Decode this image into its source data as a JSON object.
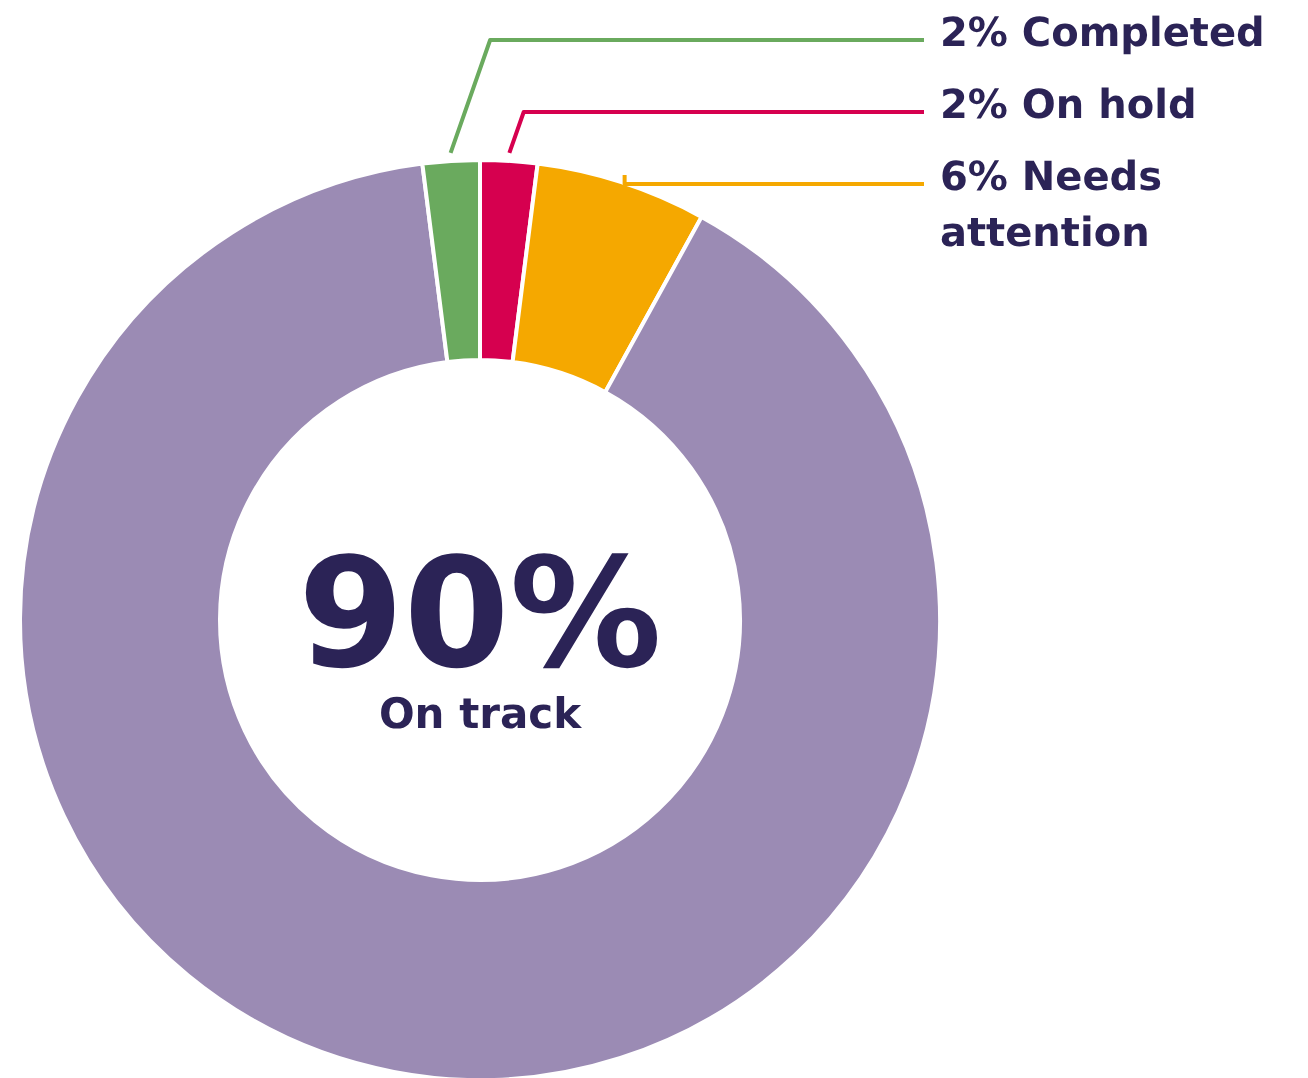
{
  "chart_data": {
    "type": "donut",
    "categories": [
      "On hold",
      "Needs attention",
      "On track",
      "Completed"
    ],
    "values": [
      2,
      6,
      90,
      2
    ],
    "value_labels": [
      "2%",
      "6%",
      "90%",
      "2%"
    ],
    "colors": [
      "#d6004f",
      "#f5a800",
      "#9b8bb4",
      "#6aaa5e"
    ]
  }
}
